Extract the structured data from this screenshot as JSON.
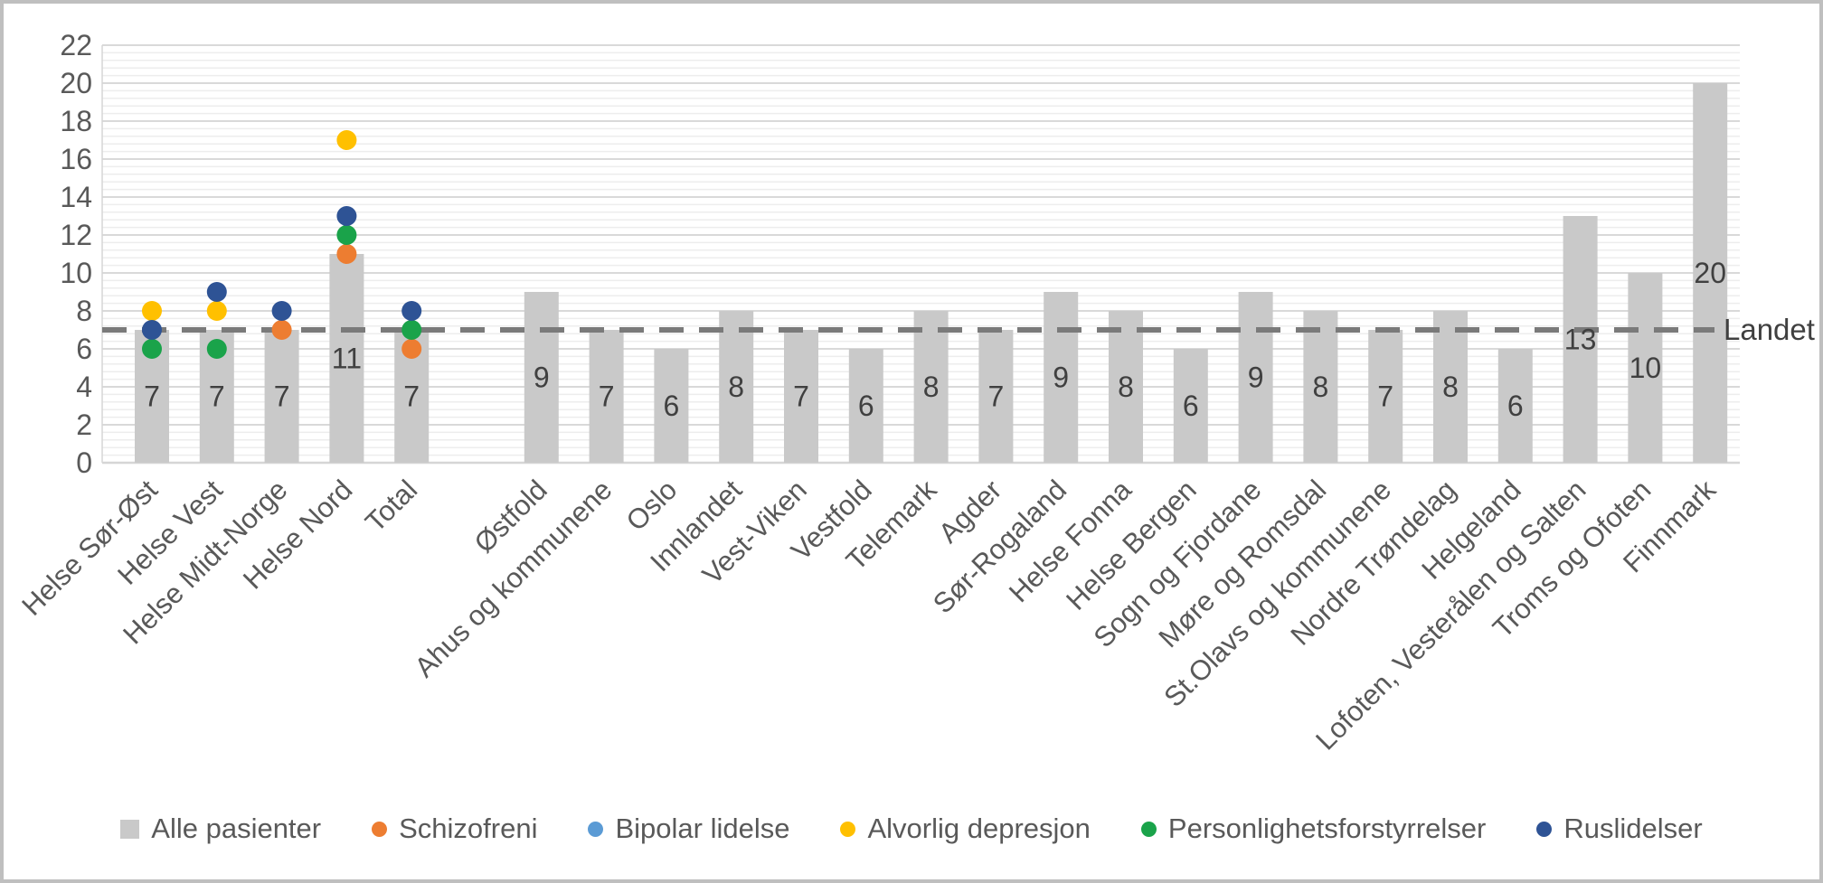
{
  "chart_data": {
    "type": "bar+scatter",
    "title": "",
    "categories": [
      "Helse Sør-Øst",
      "Helse Vest",
      "Helse Midt-Norge",
      "Helse Nord",
      "Total",
      "Østfold",
      "Ahus og kommunene",
      "Oslo",
      "Innlandet",
      "Vest-Viken",
      "Vestfold",
      "Telemark",
      "Agder",
      "Sør-Rogaland",
      "Helse Fonna",
      "Helse Bergen",
      "Sogn og Fjordane",
      "Møre og Romsdal",
      "St.Olavs og kommunene",
      "Nordre Trøndelag",
      "Helgeland",
      "Lofoten, Vesterålen og Salten",
      "Troms og Ofoten",
      "Finnmark"
    ],
    "gap_after_index": 4,
    "bar_series": {
      "name": "Alle pasienter",
      "color": "#C9C9C9",
      "values": [
        7,
        7,
        7,
        11,
        7,
        9,
        7,
        6,
        8,
        7,
        6,
        8,
        7,
        9,
        8,
        6,
        9,
        8,
        7,
        8,
        6,
        13,
        10,
        20
      ]
    },
    "scatter_series": [
      {
        "name": "Schizofreni",
        "color": "#ED7D31",
        "points": {
          "Helse Midt-Norge": 7,
          "Helse Nord": 11,
          "Total": 6
        }
      },
      {
        "name": "Bipolar lidelse",
        "color": "#5B9BD5",
        "points": {}
      },
      {
        "name": "Alvorlig depresjon",
        "color": "#FFC000",
        "points": {
          "Helse Sør-Øst": 8,
          "Helse Vest": 8,
          "Helse Nord": 17
        }
      },
      {
        "name": "Personlighetsforstyrrelser",
        "color": "#1AA34A",
        "points": {
          "Helse Sør-Øst": 6,
          "Helse Vest": 6,
          "Helse Nord": 12,
          "Total": 7
        }
      },
      {
        "name": "Ruslidelser",
        "color": "#2E5395",
        "points": {
          "Helse Sør-Øst": 7,
          "Helse Vest": 9,
          "Helse Midt-Norge": 8,
          "Helse Nord": 13,
          "Total": 8
        }
      }
    ],
    "reference_line": {
      "label": "Landet",
      "value": 7,
      "color": "#7A7A7A",
      "style": "dashed"
    },
    "y_axis": {
      "min": 0,
      "max": 22,
      "major_step": 2,
      "minor_step": 0.4,
      "tick_labels": [
        "0",
        "2",
        "4",
        "6",
        "8",
        "10",
        "12",
        "14",
        "16",
        "18",
        "20",
        "22"
      ]
    },
    "grid": true,
    "legend_position": "bottom",
    "colors": {
      "grid_major": "#D9D9D9",
      "grid_minor": "#EDEDED",
      "axis_line": "#D6D6D6",
      "axis_text": "#595959",
      "data_label_text": "#404040",
      "frame_border": "#BFBFBF",
      "background": "#FFFFFF"
    }
  }
}
